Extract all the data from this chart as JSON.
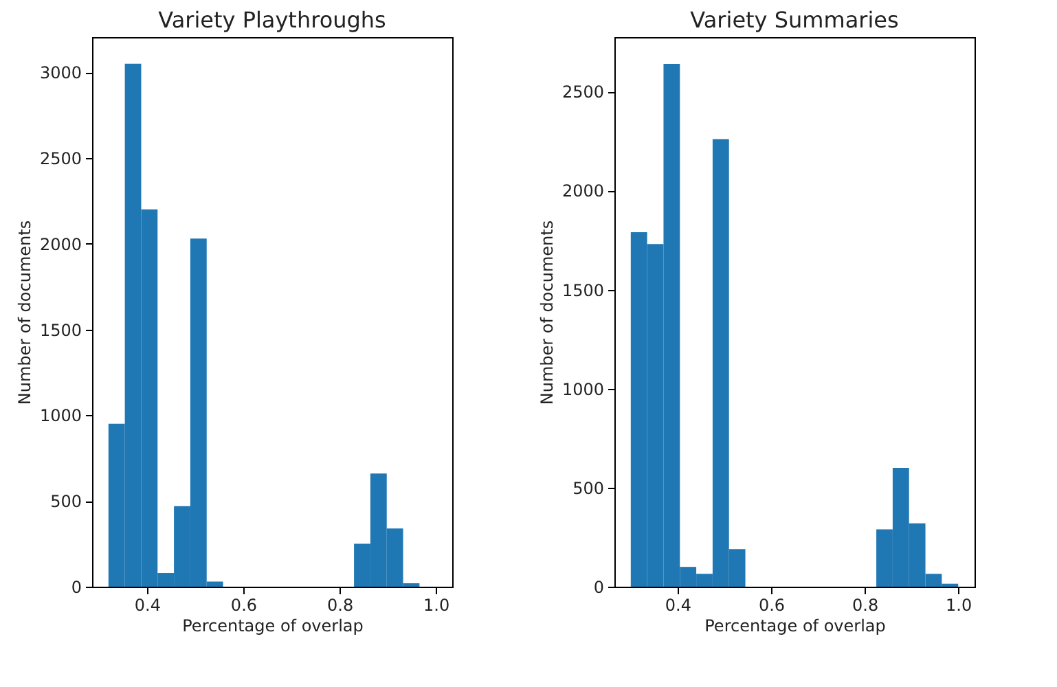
{
  "chart_data": [
    {
      "type": "histogram",
      "title": "Variety Playthroughs",
      "xlabel": "Percentage of overlap",
      "ylabel": "Number of documents",
      "color": "#1f77b4",
      "bins": [
        0.32,
        0.354,
        0.388,
        0.422,
        0.456,
        0.49,
        0.524,
        0.558,
        0.592,
        0.626,
        0.66,
        0.694,
        0.728,
        0.762,
        0.796,
        0.83,
        0.864,
        0.898,
        0.932,
        0.966,
        1.0
      ],
      "values": [
        950,
        3050,
        2200,
        80,
        470,
        2030,
        30,
        0,
        0,
        0,
        0,
        0,
        0,
        0,
        0,
        250,
        660,
        340,
        20,
        0
      ],
      "xlim": [
        0.286,
        1.034
      ],
      "xticks": [
        0.4,
        0.6,
        0.8,
        {
          "value": 1.0,
          "label": "1.0"
        }
      ],
      "ylim": [
        0,
        3205
      ],
      "yticks": [
        0,
        500,
        1000,
        1500,
        2000,
        2500,
        3000
      ],
      "grid": false
    },
    {
      "type": "histogram",
      "title": "Variety Summaries",
      "xlabel": "Percentage of overlap",
      "ylabel": "Number of documents",
      "color": "#1f77b4",
      "bins": [
        0.3,
        0.335,
        0.37,
        0.405,
        0.44,
        0.475,
        0.51,
        0.545,
        0.58,
        0.615,
        0.65,
        0.685,
        0.72,
        0.755,
        0.79,
        0.825,
        0.86,
        0.895,
        0.93,
        0.965,
        1.0
      ],
      "values": [
        1790,
        1730,
        2640,
        100,
        65,
        2260,
        190,
        0,
        0,
        0,
        0,
        0,
        0,
        0,
        0,
        290,
        600,
        320,
        65,
        15
      ],
      "xlim": [
        0.265,
        1.035
      ],
      "xticks": [
        0.4,
        0.6,
        0.8,
        {
          "value": 1.0,
          "label": "1.0"
        }
      ],
      "ylim": [
        0,
        2775
      ],
      "yticks": [
        0,
        500,
        1000,
        1500,
        2000,
        2500
      ],
      "grid": false
    }
  ]
}
